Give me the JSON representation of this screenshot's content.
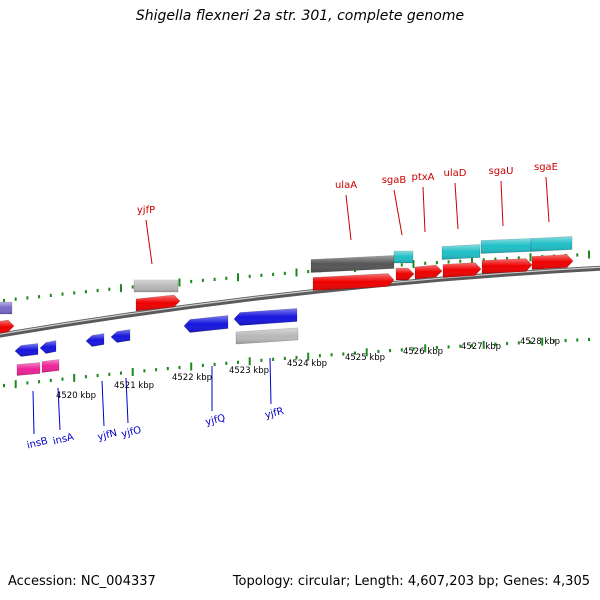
{
  "title": "Shigella flexneri 2a str. 301, complete genome",
  "footer": {
    "accession_label": "Accession:",
    "accession": "NC_004337",
    "topology_label": "Topology:",
    "topology": "circular",
    "length_label": "Length:",
    "length": "4,607,203 bp",
    "genes_label": "Genes:",
    "genes": "4,305"
  },
  "kbp_labels": [
    "4520 kbp",
    "4521 kbp",
    "4522 kbp",
    "4523 kbp",
    "4524 kbp",
    "4525 kbp",
    "4526 kbp",
    "4527 kbp",
    "4528 kbp"
  ],
  "genes_forward": [
    "yjfP",
    "ulaA",
    "sgaB",
    "ptxA",
    "ulaD",
    "sgaU",
    "sgaE"
  ],
  "genes_reverse": [
    "insB",
    "insA",
    "yjfN",
    "yjfO",
    "yjfQ",
    "yjfR"
  ],
  "colors": {
    "forward_label": "#cc0000",
    "reverse_label": "#0000cc",
    "cds_red": "#ee0000",
    "cds_blue": "#1515dd",
    "cds_cyan": "#1fbfc6",
    "cds_pink": "#ee2299",
    "cds_gray": "#b8b8b8",
    "cds_dark": "#555555",
    "cds_purple": "#7a68c8",
    "tick": "#1d8a1d",
    "backbone": "#888888"
  }
}
